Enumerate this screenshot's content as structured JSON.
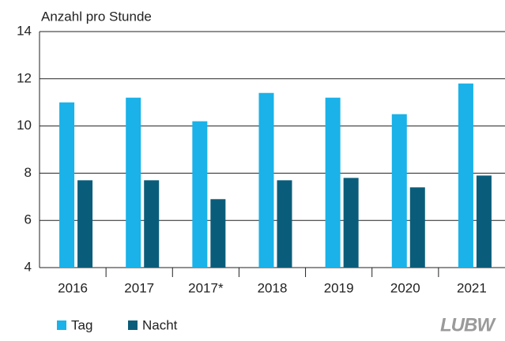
{
  "chart_data": {
    "type": "bar",
    "y_label": "Anzahl pro Stunde",
    "categories": [
      "2016",
      "2017",
      "2017*",
      "2018",
      "2019",
      "2020",
      "2021"
    ],
    "series": [
      {
        "name": "Tag",
        "color": "#1ab2e8",
        "values": [
          11.0,
          11.2,
          10.2,
          11.4,
          11.2,
          10.5,
          11.8
        ]
      },
      {
        "name": "Nacht",
        "color": "#0a5d7a",
        "values": [
          7.7,
          7.7,
          6.9,
          7.7,
          7.8,
          7.4,
          7.9
        ]
      }
    ],
    "ylim": [
      4,
      14
    ],
    "yticks": [
      4,
      6,
      8,
      10,
      12,
      14
    ],
    "grid": true,
    "legend": "bottom",
    "logo": "LUBW"
  }
}
